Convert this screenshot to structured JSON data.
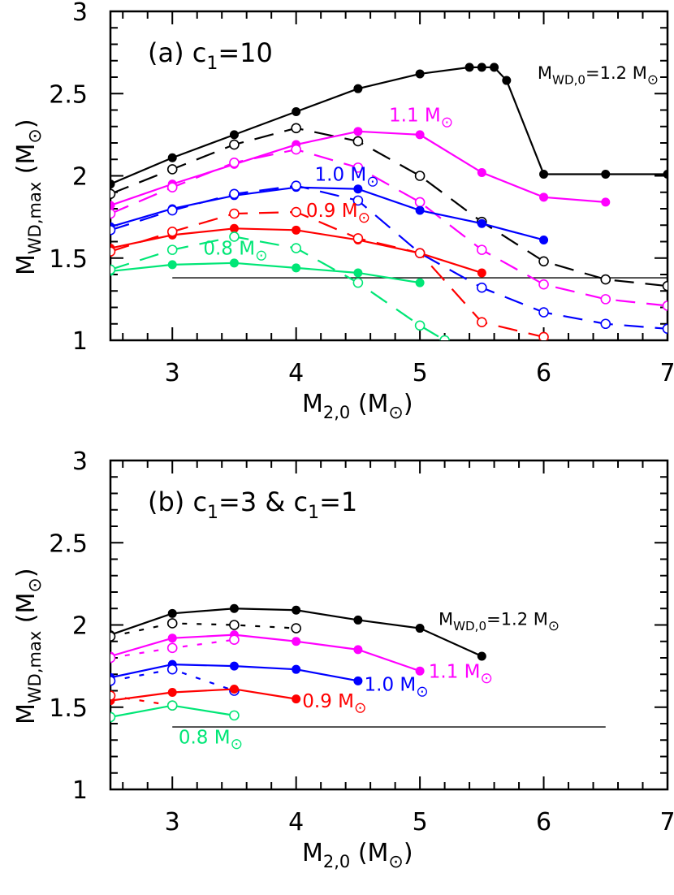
{
  "chart_data": [
    {
      "type": "line",
      "panel_label": "(a)  c",
      "panel_label_sub": "1",
      "panel_label_tail": "=10",
      "xlabel": "M2,0 (M☉)",
      "ylabel": "MWD,max (M☉)",
      "xlim": [
        2.5,
        7
      ],
      "ylim": [
        1,
        3
      ],
      "xticks": [
        3,
        4,
        5,
        6,
        7
      ],
      "yticks": [
        1,
        1.5,
        2,
        2.5,
        3
      ],
      "hline": {
        "y": 1.38,
        "x_start": 3,
        "x_end": 7
      },
      "series": [
        {
          "name": "MWD,0=1.2 M☉ solid",
          "color": "#000000",
          "style": "solid",
          "marker": "filled",
          "x": [
            2.5,
            3,
            3.5,
            4,
            4.5,
            5,
            5.4,
            5.5,
            5.6,
            5.7,
            6,
            6.5,
            7
          ],
          "y": [
            1.95,
            2.11,
            2.25,
            2.39,
            2.53,
            2.62,
            2.66,
            2.66,
            2.66,
            2.58,
            2.01,
            2.01,
            2.01
          ]
        },
        {
          "name": "MWD,0=1.2 M☉ dashed",
          "color": "#000000",
          "style": "dashed",
          "marker": "open",
          "x": [
            2.5,
            3,
            3.5,
            4,
            4.5,
            5,
            5.5,
            6,
            6.5,
            7
          ],
          "y": [
            1.89,
            2.04,
            2.19,
            2.29,
            2.21,
            2.0,
            1.72,
            1.48,
            1.37,
            1.33
          ]
        },
        {
          "name": "1.1 M☉ solid",
          "color": "#ff00ff",
          "style": "solid",
          "marker": "filled",
          "x": [
            2.5,
            3,
            3.5,
            4,
            4.5,
            5,
            5.5,
            6,
            6.5
          ],
          "y": [
            1.82,
            1.95,
            2.07,
            2.19,
            2.27,
            2.25,
            2.02,
            1.87,
            1.84
          ]
        },
        {
          "name": "1.1 M☉ dashed",
          "color": "#ff00ff",
          "style": "dashed",
          "marker": "open",
          "x": [
            2.5,
            3,
            3.5,
            4,
            4.5,
            5,
            5.5,
            6,
            6.5,
            7
          ],
          "y": [
            1.77,
            1.93,
            2.08,
            2.16,
            2.05,
            1.84,
            1.55,
            1.34,
            1.25,
            1.21
          ]
        },
        {
          "name": "1.0 M☉ solid",
          "color": "#0000ff",
          "style": "solid",
          "marker": "filled",
          "x": [
            2.5,
            3,
            3.5,
            4,
            4.5,
            5,
            5.5,
            6
          ],
          "y": [
            1.69,
            1.8,
            1.88,
            1.93,
            1.92,
            1.79,
            1.71,
            1.61
          ]
        },
        {
          "name": "1.0 M☉ dashed",
          "color": "#0000ff",
          "style": "dashed",
          "marker": "open",
          "x": [
            2.5,
            3,
            3.5,
            4,
            4.5,
            5,
            5.5,
            6,
            6.5,
            7
          ],
          "y": [
            1.67,
            1.79,
            1.89,
            1.94,
            1.85,
            1.53,
            1.32,
            1.17,
            1.1,
            1.07
          ]
        },
        {
          "name": "0.9 M☉ solid",
          "color": "#ff0000",
          "style": "solid",
          "marker": "filled",
          "x": [
            2.5,
            3,
            3.5,
            4,
            4.5,
            5,
            5.5
          ],
          "y": [
            1.56,
            1.64,
            1.68,
            1.67,
            1.61,
            1.53,
            1.41
          ]
        },
        {
          "name": "0.9 M☉ dashed",
          "color": "#ff0000",
          "style": "dashed",
          "marker": "open",
          "x": [
            2.5,
            3,
            3.5,
            4,
            4.5,
            5,
            5.5,
            6
          ],
          "y": [
            1.54,
            1.66,
            1.77,
            1.78,
            1.62,
            1.53,
            1.11,
            1.02
          ]
        },
        {
          "name": "0.8 M☉ solid",
          "color": "#00e676",
          "style": "solid",
          "marker": "filled",
          "x": [
            2.5,
            3,
            3.5,
            4,
            4.5,
            5
          ],
          "y": [
            1.42,
            1.46,
            1.47,
            1.44,
            1.41,
            1.35
          ]
        },
        {
          "name": "0.8 M☉ dashed",
          "color": "#00e676",
          "style": "dashed",
          "marker": "open",
          "x": [
            2.5,
            3,
            3.5,
            4,
            4.5,
            5,
            5.2
          ],
          "y": [
            1.43,
            1.55,
            1.63,
            1.56,
            1.35,
            1.09,
            1.0
          ]
        }
      ],
      "annotations": [
        {
          "text": "MWD,0=1.2 M☉",
          "x": 5.95,
          "y": 2.59,
          "color": "#000000"
        },
        {
          "text": "1.1 M☉",
          "x": 4.75,
          "y": 2.33,
          "color": "#ff00ff"
        },
        {
          "text": "1.0 M☉",
          "x": 4.15,
          "y": 1.97,
          "color": "#0000ff"
        },
        {
          "text": "0.9 M☉",
          "x": 4.08,
          "y": 1.75,
          "color": "#ff0000"
        },
        {
          "text": "0.8 M☉",
          "x": 3.25,
          "y": 1.52,
          "color": "#00e676"
        }
      ]
    },
    {
      "type": "line",
      "panel_label": "(b)  c",
      "panel_label_sub": "1",
      "panel_label_tail": "=3 & c",
      "panel_label_sub2": "1",
      "panel_label_tail2": "=1",
      "xlabel": "M2,0 (M☉)",
      "ylabel": "MWD,max (M☉)",
      "xlim": [
        2.5,
        7
      ],
      "ylim": [
        1,
        3
      ],
      "xticks": [
        3,
        4,
        5,
        6,
        7
      ],
      "yticks": [
        1,
        1.5,
        2,
        2.5,
        3
      ],
      "hline": {
        "y": 1.38,
        "x_start": 3,
        "x_end": 6.5
      },
      "series": [
        {
          "name": "1.2 M☉ solid (c1=3)",
          "color": "#000000",
          "style": "solid",
          "marker": "filled",
          "x": [
            2.5,
            3,
            3.5,
            4,
            4.5,
            5,
            5.5
          ],
          "y": [
            1.94,
            2.07,
            2.1,
            2.09,
            2.03,
            1.98,
            1.81
          ]
        },
        {
          "name": "1.2 M☉ dotted (c1=1)",
          "color": "#000000",
          "style": "dotted",
          "marker": "open",
          "x": [
            2.5,
            3,
            3.5,
            4
          ],
          "y": [
            1.93,
            2.01,
            2.0,
            1.98
          ]
        },
        {
          "name": "1.1 M☉ solid (c1=3)",
          "color": "#ff00ff",
          "style": "solid",
          "marker": "filled",
          "x": [
            2.5,
            3,
            3.5,
            4,
            4.5,
            5
          ],
          "y": [
            1.81,
            1.92,
            1.94,
            1.9,
            1.85,
            1.72
          ]
        },
        {
          "name": "1.1 M☉ dotted (c1=1)",
          "color": "#ff00ff",
          "style": "dotted",
          "marker": "open",
          "x": [
            2.5,
            3,
            3.5
          ],
          "y": [
            1.8,
            1.86,
            1.91
          ]
        },
        {
          "name": "1.0 M☉ solid (c1=3)",
          "color": "#0000ff",
          "style": "solid",
          "marker": "filled",
          "x": [
            2.5,
            3,
            3.5,
            4,
            4.5
          ],
          "y": [
            1.68,
            1.76,
            1.75,
            1.73,
            1.66
          ]
        },
        {
          "name": "1.0 M☉ dotted (c1=1)",
          "color": "#0000ff",
          "style": "dotted",
          "marker": "open",
          "x": [
            2.5,
            3,
            3.5
          ],
          "y": [
            1.66,
            1.73,
            1.6
          ]
        },
        {
          "name": "0.9 M☉ solid (c1=3)",
          "color": "#ff0000",
          "style": "solid",
          "marker": "filled",
          "x": [
            2.5,
            3,
            3.5,
            4
          ],
          "y": [
            1.54,
            1.59,
            1.61,
            1.55
          ]
        },
        {
          "name": "0.9 M☉ dotted (c1=1)",
          "color": "#ff0000",
          "style": "dotted",
          "marker": "open",
          "x": [
            2.5,
            3
          ],
          "y": [
            1.57,
            1.51
          ]
        },
        {
          "name": "0.8 M☉ solid (c1=3)",
          "color": "#00e676",
          "style": "solid",
          "marker": "open",
          "x": [
            2.5,
            3,
            3.5
          ],
          "y": [
            1.44,
            1.51,
            1.45
          ]
        }
      ],
      "annotations": [
        {
          "text": "MWD,0=1.2 M☉",
          "x": 5.15,
          "y": 2.0,
          "color": "#000000"
        },
        {
          "text": "1.1 M☉",
          "x": 5.07,
          "y": 1.68,
          "color": "#ff00ff"
        },
        {
          "text": "1.0 M☉",
          "x": 4.55,
          "y": 1.6,
          "color": "#0000ff"
        },
        {
          "text": "0.9 M☉",
          "x": 4.05,
          "y": 1.5,
          "color": "#ff0000"
        },
        {
          "text": "0.8 M☉",
          "x": 3.05,
          "y": 1.28,
          "color": "#00e676"
        }
      ]
    }
  ]
}
